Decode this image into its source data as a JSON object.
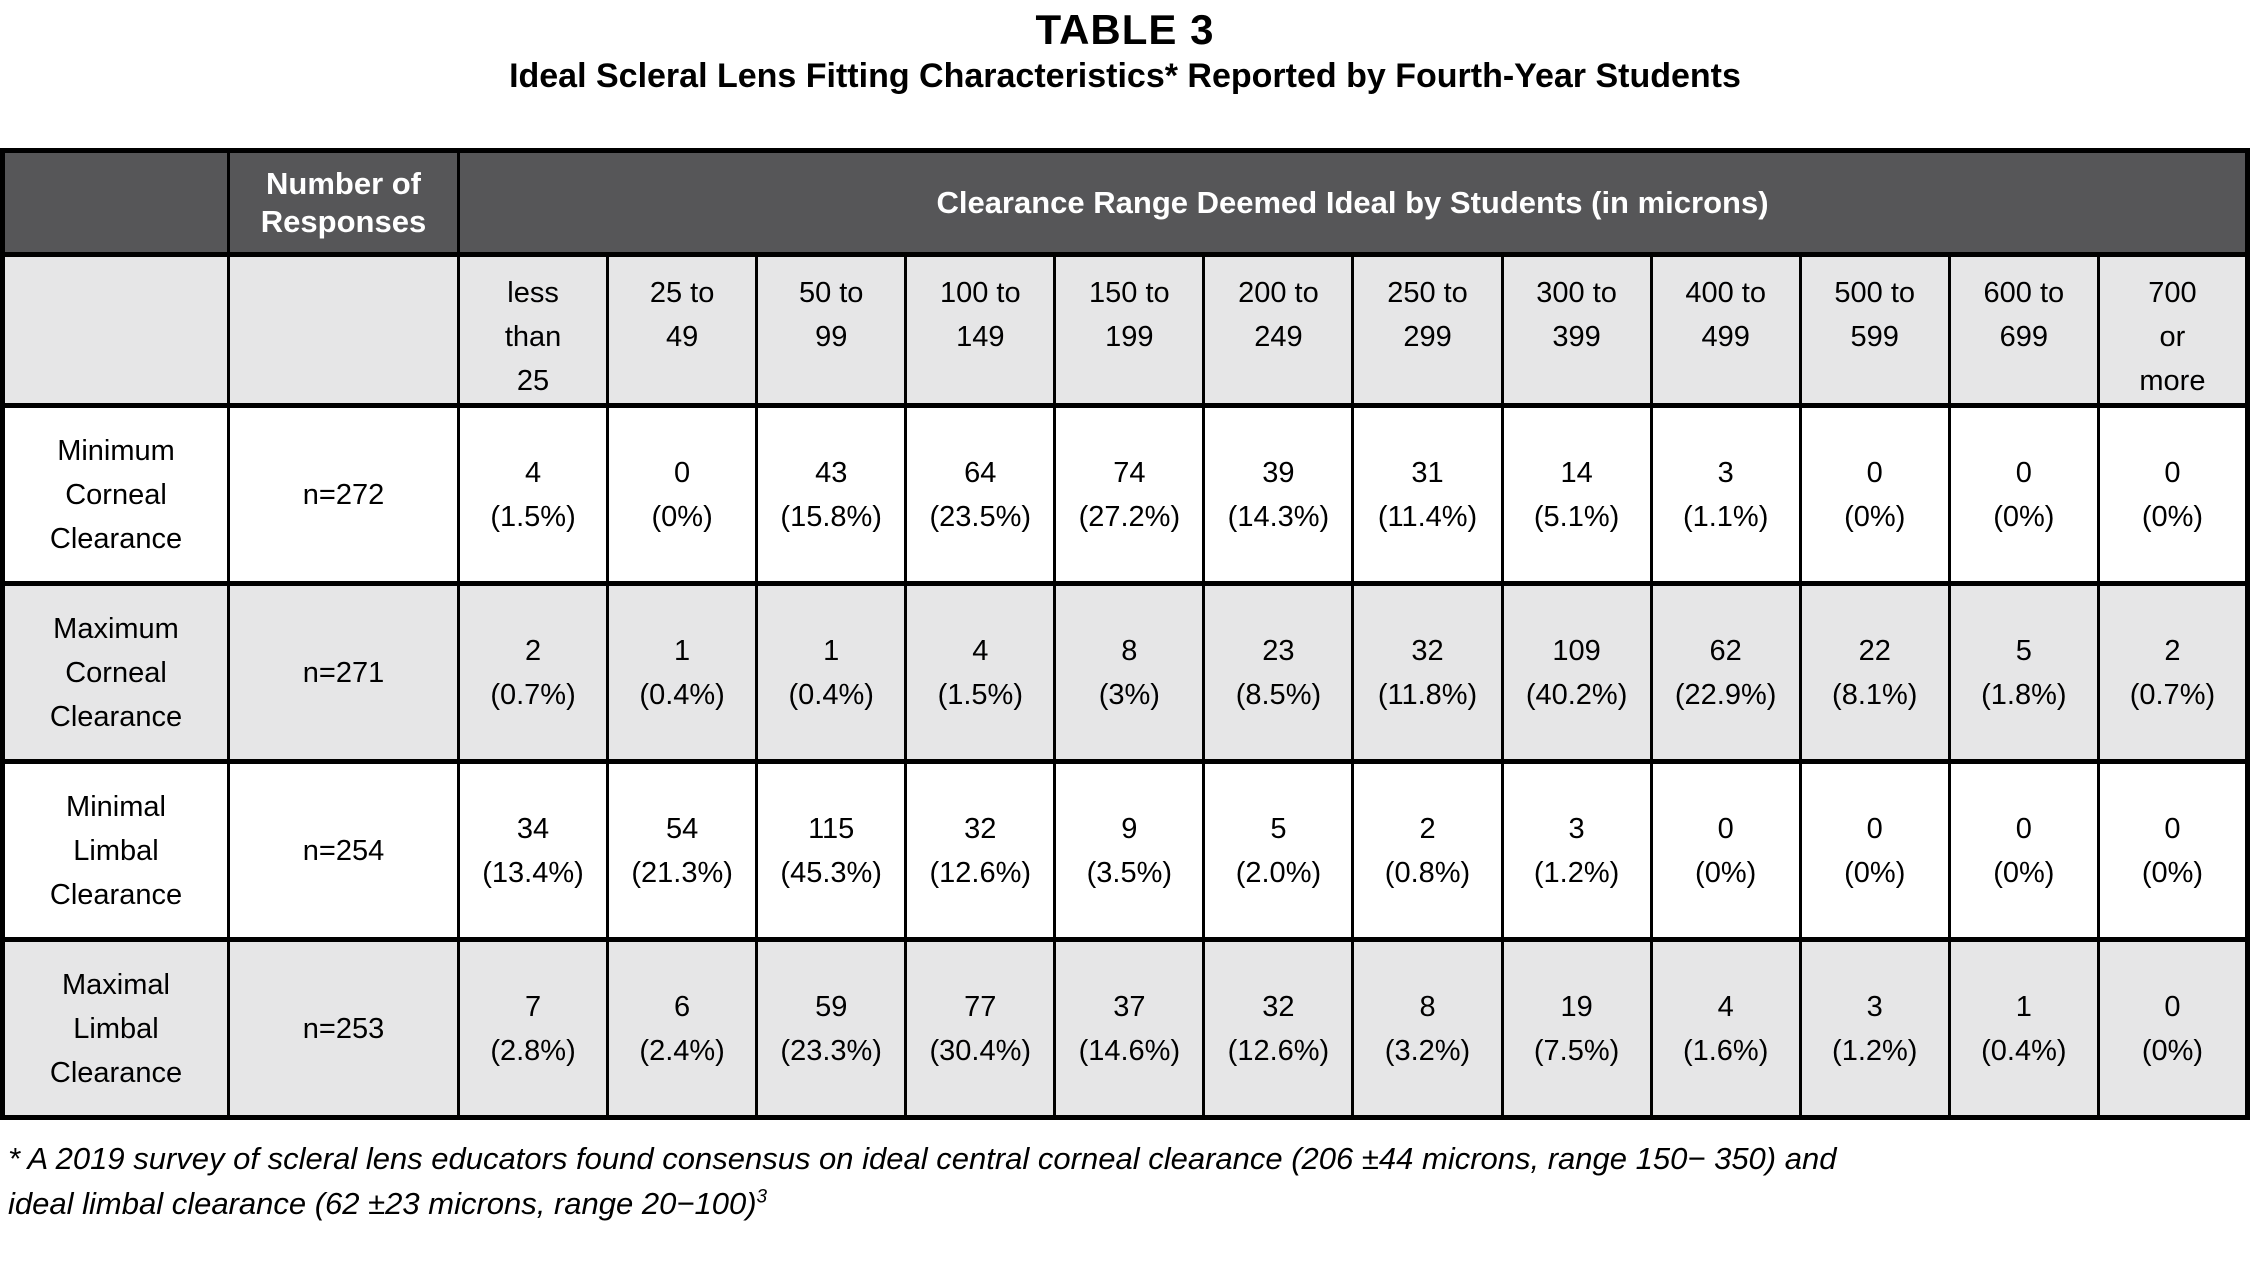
{
  "page": {
    "title": "TABLE 3",
    "subtitle": "Ideal Scleral Lens Fitting Characteristics* Reported by Fourth-Year Students"
  },
  "table": {
    "header": {
      "corner": "",
      "responses": "Number of\nResponses",
      "clearance": "Clearance Range Deemed Ideal by Students (in microns)",
      "ranges": [
        "less\nthan\n25",
        "25 to\n49",
        "50 to\n99",
        "100 to\n149",
        "150 to\n199",
        "200 to\n249",
        "250 to\n299",
        "300 to\n399",
        "400 to\n499",
        "500 to\n599",
        "600 to\n699",
        "700\nor\nmore"
      ]
    },
    "rows": [
      {
        "label": "Minimum\nCorneal\nClearance",
        "n": "n=272",
        "cells": [
          "4\n(1.5%)",
          "0\n(0%)",
          "43\n(15.8%)",
          "64\n(23.5%)",
          "74\n(27.2%)",
          "39\n(14.3%)",
          "31\n(11.4%)",
          "14\n(5.1%)",
          "3\n(1.1%)",
          "0\n(0%)",
          "0\n(0%)",
          "0\n(0%)"
        ]
      },
      {
        "label": "Maximum\nCorneal\nClearance",
        "n": "n=271",
        "cells": [
          "2\n(0.7%)",
          "1\n(0.4%)",
          "1\n(0.4%)",
          "4\n(1.5%)",
          "8\n(3%)",
          "23\n(8.5%)",
          "32\n(11.8%)",
          "109\n(40.2%)",
          "62\n(22.9%)",
          "22\n(8.1%)",
          "5\n(1.8%)",
          "2\n(0.7%)"
        ]
      },
      {
        "label": "Minimal\nLimbal\nClearance",
        "n": "n=254",
        "cells": [
          "34\n(13.4%)",
          "54\n(21.3%)",
          "115\n(45.3%)",
          "32\n(12.6%)",
          "9\n(3.5%)",
          "5\n(2.0%)",
          "2\n(0.8%)",
          "3\n(1.2%)",
          "0\n(0%)",
          "0\n(0%)",
          "0\n(0%)",
          "0\n(0%)"
        ]
      },
      {
        "label": "Maximal\nLimbal\nClearance",
        "n": "n=253",
        "cells": [
          "7\n(2.8%)",
          "6\n(2.4%)",
          "59\n(23.3%)",
          "77\n(30.4%)",
          "37\n(14.6%)",
          "32\n(12.6%)",
          "8\n(3.2%)",
          "19\n(7.5%)",
          "4\n(1.6%)",
          "3\n(1.2%)",
          "1\n(0.4%)",
          "0\n(0%)"
        ]
      }
    ]
  },
  "footnote": {
    "text": "* A 2019 survey of scleral lens educators found consensus on ideal central corneal clearance (206 ±44 microns, range 150− 350) and\nideal limbal clearance (62 ±23 microns, range 20−100)",
    "superscript": "3"
  },
  "colors": {
    "header_dark": "#565658",
    "row_shaded": "#e6e6e7",
    "border": "#000000"
  }
}
